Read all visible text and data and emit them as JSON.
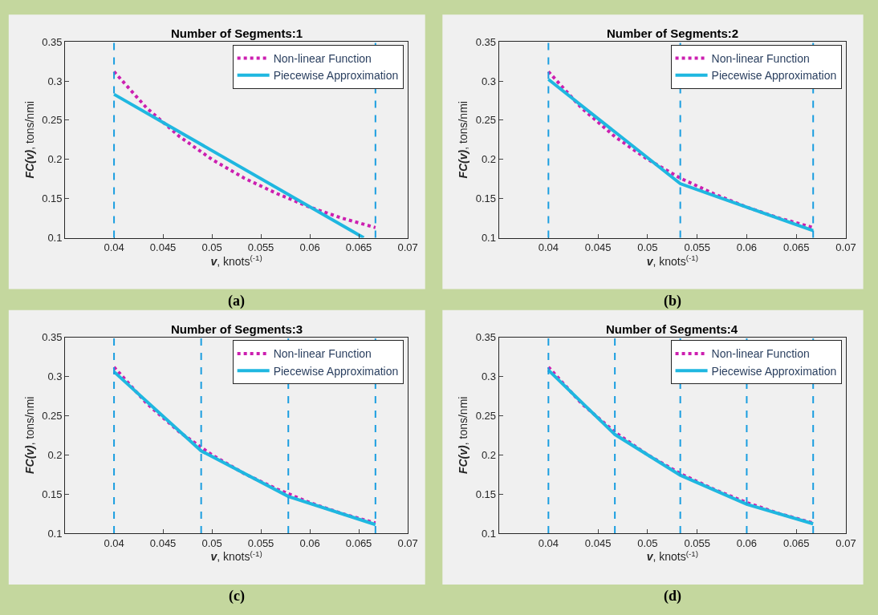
{
  "chart_data": [
    {
      "type": "line",
      "title": "Number of Segments:1",
      "xlabel": "v, knots$^{(-1)}$",
      "ylabel": "FC(v), tons/nmi",
      "xlim": [
        0.035,
        0.07
      ],
      "ylim": [
        0.1,
        0.35
      ],
      "xticks": [
        0.04,
        0.045,
        0.05,
        0.055,
        0.06,
        0.065,
        0.07
      ],
      "yticks": [
        0.1,
        0.15,
        0.2,
        0.25,
        0.3,
        0.35
      ],
      "legend": "top right",
      "grid": false,
      "annotations": [
        "(a)"
      ],
      "series": [
        {
          "name": "Non-linear Function",
          "color": "#cc1fb0",
          "line_style": "dotted",
          "x": [
            0.04,
            0.0433,
            0.0467,
            0.05,
            0.0533,
            0.0567,
            0.06,
            0.0633,
            0.0667
          ],
          "values": [
            0.312,
            0.266,
            0.229,
            0.2,
            0.176,
            0.156,
            0.139,
            0.125,
            0.113
          ]
        },
        {
          "name": "Piecewise Approximation",
          "color": "#1fb7e0",
          "line_style": "solid",
          "x": [
            0.04,
            0.0655
          ],
          "values": [
            0.283,
            0.1
          ]
        }
      ],
      "ref_lines": [
        {
          "axis": "x",
          "value": 0.04,
          "color": "#1a9ee0",
          "line_style": "dashed"
        },
        {
          "axis": "x",
          "value": 0.0667,
          "color": "#1a9ee0",
          "line_style": "dashed"
        }
      ]
    },
    {
      "type": "line",
      "title": "Number of Segments:2",
      "xlabel": "v, knots$^{(-1)}$",
      "ylabel": "FC(v), tons/nmi",
      "xlim": [
        0.035,
        0.07
      ],
      "ylim": [
        0.1,
        0.35
      ],
      "xticks": [
        0.04,
        0.045,
        0.05,
        0.055,
        0.06,
        0.065,
        0.07
      ],
      "yticks": [
        0.1,
        0.15,
        0.2,
        0.25,
        0.3,
        0.35
      ],
      "legend": "top right",
      "grid": false,
      "annotations": [
        "(b)"
      ],
      "series": [
        {
          "name": "Non-linear Function",
          "color": "#cc1fb0",
          "line_style": "dotted",
          "x": [
            0.04,
            0.0433,
            0.0467,
            0.05,
            0.0533,
            0.0567,
            0.06,
            0.0633,
            0.0667
          ],
          "values": [
            0.312,
            0.266,
            0.229,
            0.2,
            0.176,
            0.156,
            0.139,
            0.125,
            0.113
          ]
        },
        {
          "name": "Piecewise Approximation",
          "color": "#1fb7e0",
          "line_style": "solid",
          "x": [
            0.04,
            0.0533,
            0.0667
          ],
          "values": [
            0.302,
            0.169,
            0.109
          ]
        }
      ],
      "ref_lines": [
        {
          "axis": "x",
          "value": 0.04,
          "color": "#1a9ee0",
          "line_style": "dashed"
        },
        {
          "axis": "x",
          "value": 0.0533,
          "color": "#1a9ee0",
          "line_style": "dashed"
        },
        {
          "axis": "x",
          "value": 0.0667,
          "color": "#1a9ee0",
          "line_style": "dashed"
        }
      ]
    },
    {
      "type": "line",
      "title": "Number of Segments:3",
      "xlabel": "v, knots$^{(-1)}$",
      "ylabel": "FC(v), tons/nmi",
      "xlim": [
        0.035,
        0.07
      ],
      "ylim": [
        0.1,
        0.35
      ],
      "xticks": [
        0.04,
        0.045,
        0.05,
        0.055,
        0.06,
        0.065,
        0.07
      ],
      "yticks": [
        0.1,
        0.15,
        0.2,
        0.25,
        0.3,
        0.35
      ],
      "legend": "top right",
      "grid": false,
      "annotations": [
        "(c)"
      ],
      "series": [
        {
          "name": "Non-linear Function",
          "color": "#cc1fb0",
          "line_style": "dotted",
          "x": [
            0.04,
            0.0433,
            0.0467,
            0.05,
            0.0533,
            0.0567,
            0.06,
            0.0633,
            0.0667
          ],
          "values": [
            0.312,
            0.266,
            0.229,
            0.2,
            0.176,
            0.156,
            0.139,
            0.125,
            0.113
          ]
        },
        {
          "name": "Piecewise Approximation",
          "color": "#1fb7e0",
          "line_style": "solid",
          "x": [
            0.04,
            0.0489,
            0.0578,
            0.0667
          ],
          "values": [
            0.306,
            0.205,
            0.147,
            0.111
          ]
        }
      ],
      "ref_lines": [
        {
          "axis": "x",
          "value": 0.04,
          "color": "#1a9ee0",
          "line_style": "dashed"
        },
        {
          "axis": "x",
          "value": 0.0489,
          "color": "#1a9ee0",
          "line_style": "dashed"
        },
        {
          "axis": "x",
          "value": 0.0578,
          "color": "#1a9ee0",
          "line_style": "dashed"
        },
        {
          "axis": "x",
          "value": 0.0667,
          "color": "#1a9ee0",
          "line_style": "dashed"
        }
      ]
    },
    {
      "type": "line",
      "title": "Number of Segments:4",
      "xlabel": "v, knots$^{(-1)}$",
      "ylabel": "FC(v), tons/nmi",
      "xlim": [
        0.035,
        0.07
      ],
      "ylim": [
        0.1,
        0.35
      ],
      "xticks": [
        0.04,
        0.045,
        0.05,
        0.055,
        0.06,
        0.065,
        0.07
      ],
      "yticks": [
        0.1,
        0.15,
        0.2,
        0.25,
        0.3,
        0.35
      ],
      "legend": "top right",
      "grid": false,
      "annotations": [
        "(d)"
      ],
      "series": [
        {
          "name": "Non-linear Function",
          "color": "#cc1fb0",
          "line_style": "dotted",
          "x": [
            0.04,
            0.0433,
            0.0467,
            0.05,
            0.0533,
            0.0567,
            0.06,
            0.0633,
            0.0667
          ],
          "values": [
            0.312,
            0.266,
            0.229,
            0.2,
            0.176,
            0.156,
            0.139,
            0.125,
            0.113
          ]
        },
        {
          "name": "Piecewise Approximation",
          "color": "#1fb7e0",
          "line_style": "solid",
          "x": [
            0.04,
            0.0467,
            0.0533,
            0.06,
            0.0667
          ],
          "values": [
            0.308,
            0.226,
            0.174,
            0.137,
            0.112
          ]
        }
      ],
      "ref_lines": [
        {
          "axis": "x",
          "value": 0.04,
          "color": "#1a9ee0",
          "line_style": "dashed"
        },
        {
          "axis": "x",
          "value": 0.0467,
          "color": "#1a9ee0",
          "line_style": "dashed"
        },
        {
          "axis": "x",
          "value": 0.0533,
          "color": "#1a9ee0",
          "line_style": "dashed"
        },
        {
          "axis": "x",
          "value": 0.06,
          "color": "#1a9ee0",
          "line_style": "dashed"
        },
        {
          "axis": "x",
          "value": 0.0667,
          "color": "#1a9ee0",
          "line_style": "dashed"
        }
      ]
    }
  ]
}
